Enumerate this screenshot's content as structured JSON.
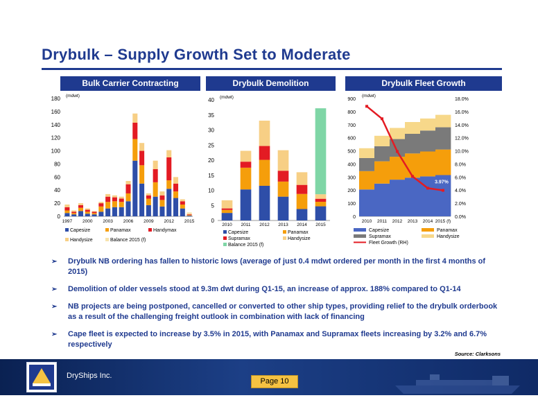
{
  "title": "Drybulk – Supply Growth Set to Moderate",
  "panels": {
    "contracting": "Bulk Carrier Contracting",
    "demolition": "Drybulk Demolition",
    "fleet": "Drybulk Fleet Growth"
  },
  "colors": {
    "navy": "#1f3a8f",
    "capesize": "#2e4ea8",
    "panamax": "#f59e0b",
    "handymax": "#e31b23",
    "supramax": "#e31b23",
    "handysize": "#f7cf85",
    "balance": "#f7e3ad",
    "balance_demo": "#7fd6a6",
    "fleet_capesize": "#4a67c3",
    "fleet_panamax": "#f59e0b",
    "fleet_supramax": "#7a7a7a",
    "fleet_handysize": "#f7d88a",
    "fleet_growth_line": "#e31b23"
  },
  "chart_data": [
    {
      "type": "bar",
      "stacked": true,
      "title": "Bulk Carrier Contracting",
      "unit_label": "(mdwt)",
      "x_tick_labels": [
        "1997",
        "2000",
        "2003",
        "2006",
        "2009",
        "2012",
        "2015"
      ],
      "categories": [
        "1997",
        "1998",
        "1999",
        "2000",
        "2001",
        "2002",
        "2003",
        "2004",
        "2005",
        "2006",
        "2007",
        "2008",
        "2009",
        "2010",
        "2011",
        "2012",
        "2013",
        "2014",
        "2015"
      ],
      "y_ticks": [
        0,
        20,
        40,
        60,
        80,
        100,
        120,
        140,
        160,
        180
      ],
      "ylim": [
        0,
        180
      ],
      "series": [
        {
          "name": "Capesize",
          "color_key": "capesize",
          "values": [
            5,
            3,
            8,
            4,
            3,
            7,
            12,
            14,
            14,
            23,
            85,
            50,
            17,
            30,
            15,
            42,
            28,
            12,
            1
          ]
        },
        {
          "name": "Panamax",
          "color_key": "panamax",
          "values": [
            4,
            2,
            5,
            3,
            2,
            8,
            10,
            9,
            8,
            12,
            33,
            28,
            10,
            22,
            10,
            13,
            10,
            6,
            1
          ]
        },
        {
          "name": "Handymax",
          "color_key": "handymax",
          "values": [
            5,
            2,
            4,
            3,
            2,
            5,
            8,
            6,
            5,
            14,
            25,
            22,
            5,
            20,
            7,
            35,
            12,
            5,
            1
          ]
        },
        {
          "name": "Handysize",
          "color_key": "handysize",
          "values": [
            4,
            2,
            3,
            2,
            1,
            2,
            4,
            3,
            3,
            5,
            14,
            12,
            3,
            13,
            6,
            11,
            10,
            3,
            1
          ]
        },
        {
          "name": "Balance 2015 (f)",
          "color_key": "balance",
          "values": [
            0,
            0,
            0,
            0,
            0,
            0,
            0,
            0,
            0,
            0,
            0,
            0,
            0,
            0,
            0,
            0,
            0,
            0,
            2
          ]
        }
      ],
      "legend": [
        "Capesize",
        "Panamax",
        "Handymax",
        "Handysize",
        "Balance 2015 (f)"
      ]
    },
    {
      "type": "bar",
      "stacked": true,
      "title": "Drybulk Demolition",
      "unit_label": "(mdwt)",
      "categories": [
        "2010",
        "2011",
        "2012",
        "2013",
        "2014",
        "2015"
      ],
      "y_ticks": [
        0,
        5,
        10,
        15,
        20,
        25,
        30,
        35,
        40
      ],
      "ylim": [
        0,
        40
      ],
      "series": [
        {
          "name": "Capesize",
          "color_key": "capesize",
          "values": [
            2.5,
            10.3,
            11.5,
            7.9,
            3.8,
            4.7
          ]
        },
        {
          "name": "Panamax",
          "color_key": "panamax",
          "values": [
            1.0,
            7.2,
            8.6,
            5.0,
            5.0,
            1.5
          ]
        },
        {
          "name": "Supramax",
          "color_key": "supramax",
          "values": [
            0.5,
            2.0,
            4.6,
            3.6,
            3.0,
            1.0
          ]
        },
        {
          "name": "Handysize",
          "color_key": "handysize",
          "values": [
            2.7,
            3.6,
            8.4,
            6.8,
            4.2,
            1.5
          ]
        },
        {
          "name": "Balance 2015 (f)",
          "color_key": "balance_demo",
          "values": [
            0,
            0,
            0,
            0,
            0,
            28.5
          ]
        }
      ],
      "legend": [
        "Capesize",
        "Panamax",
        "Supramax",
        "Handysize",
        "Balance 2015 (f)"
      ]
    },
    {
      "type": "bar",
      "stacked": true,
      "title": "Drybulk Fleet Growth",
      "unit_label": "(mdwt)",
      "categories": [
        "2010",
        "2011",
        "2012",
        "2013",
        "2014",
        "2015 (f)"
      ],
      "y_ticks": [
        0,
        100,
        200,
        300,
        400,
        500,
        600,
        700,
        800,
        900
      ],
      "ylim": [
        0,
        900
      ],
      "y2_ticks": [
        "0.0%",
        "2.0%",
        "4.0%",
        "6.0%",
        "8.0%",
        "10.0%",
        "12.0%",
        "14.0%",
        "16.0%",
        "18.0%"
      ],
      "y2lim": [
        0,
        18
      ],
      "series": [
        {
          "name": "Capesize",
          "color_key": "fleet_capesize",
          "values": [
            205,
            250,
            280,
            295,
            305,
            315
          ]
        },
        {
          "name": "Panamax",
          "color_key": "fleet_panamax",
          "values": [
            140,
            170,
            175,
            185,
            190,
            195
          ]
        },
        {
          "name": "Supramax",
          "color_key": "fleet_supramax",
          "values": [
            100,
            115,
            135,
            150,
            160,
            170
          ]
        },
        {
          "name": "Handysize",
          "color_key": "fleet_handysize",
          "values": [
            75,
            80,
            85,
            90,
            92,
            95
          ]
        }
      ],
      "line_series": {
        "name": "Fleet Growth (RH)",
        "color_key": "fleet_growth_line",
        "values": [
          16.8,
          14.9,
          9.9,
          6.1,
          4.3,
          3.97
        ],
        "last_label": "3.97%"
      },
      "legend": [
        "Capesize",
        "Panamax",
        "Supramax",
        "Handysize",
        "Fleet Growth (RH)"
      ]
    }
  ],
  "bullets": [
    "Drybulk NB ordering has fallen to historic lows (average of just 0.4 mdwt ordered per month in the first 4 months of 2015)",
    "Demolition of older vessels stood at 9.3m dwt during Q1-15,  an increase of approx. 188% compared to Q1-14",
    "NB projects are being postponed, cancelled or converted to other ship types, providing relief to the drybulk orderbook as a result of the challenging freight outlook in combination with lack of financing",
    "Cape fleet is expected to increase by 3.5% in 2015, with Panamax and Supramax fleets increasing by 3.2% and 6.7% respectively"
  ],
  "bullet_icon": "arrow-bullet-icon",
  "bullet_glyph": "➢",
  "source": "Source: Clarksons",
  "footer": {
    "company": "DryShips Inc.",
    "page": "Page 10",
    "logo_icon": "dryships-logo-icon",
    "ship_icon": "ship-silhouette-icon"
  }
}
